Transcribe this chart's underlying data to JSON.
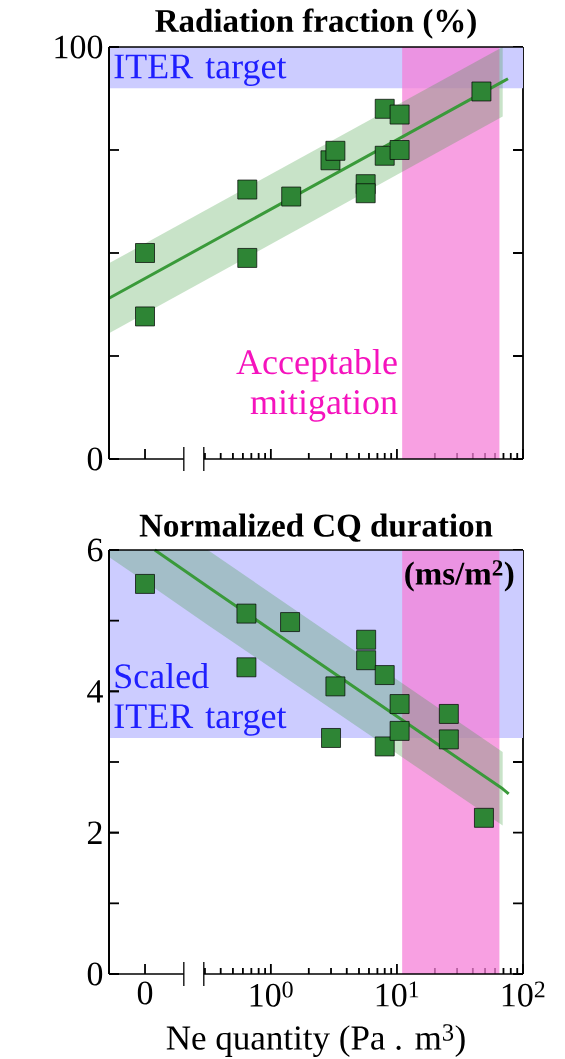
{
  "chart_data": [
    {
      "type": "scatter",
      "categories": [
        "0"
      ],
      "ylim": [
        0,
        100
      ],
      "yticks": [
        0,
        100
      ],
      "tick_labels": "y",
      "series": [
        {
          "color": "#2e8535",
          "marker": "square",
          "values": [
            50.0
          ]
        },
        {
          "color": "#2e8535",
          "marker": "square",
          "values": [
            34.6
          ]
        }
      ]
    },
    {
      "type": "scatter",
      "title": "Radiation fraction (%)",
      "xlim": [
        0.052,
        100
      ],
      "ylim": [
        0,
        100
      ],
      "log": "x",
      "xticks": [
        {
          "value": 1,
          "label": null
        },
        {
          "value": 10,
          "label": null
        },
        {
          "value": 100,
          "label": null
        }
      ],
      "yticks": [
        0,
        {
          "value": 25,
          "label": null
        },
        {
          "value": 50,
          "label": null
        },
        {
          "value": 75,
          "label": null
        },
        100
      ],
      "tick_labels": false,
      "series": [
        {
          "type": "line",
          "color": "#3a9a3a",
          "x": [
            0.052,
            69,
            76
          ],
          "values": [
            39.0,
            91.6,
            92.3
          ],
          "lower": [
            30.5,
            83.1,
            null
          ],
          "upper": [
            47.5,
            100,
            null
          ]
        },
        {
          "color": "#2e8535",
          "marker": "square",
          "x": [
            0.65,
            0.65,
            1.45,
            2.97,
            3.25,
            5.65,
            5.65,
            8.0,
            8.0,
            10.5,
            10.5,
            46.8
          ],
          "values": [
            65.4,
            48.8,
            63.7,
            72.5,
            74.8,
            66.7,
            64.5,
            85.0,
            73.6,
            83.6,
            75.0,
            89.2
          ]
        }
      ],
      "bands": [
        {
          "axis": "y",
          "from": 90,
          "to": 100,
          "label": "ITER target",
          "color": "#ccccff"
        },
        {
          "axis": "x",
          "from": 11,
          "to": 65,
          "label": "Acceptable mitigation",
          "color": "#f580d8"
        }
      ]
    },
    {
      "type": "scatter",
      "categories": [
        "0"
      ],
      "ylim": [
        0,
        6
      ],
      "yticks": [
        0,
        2,
        4,
        6
      ],
      "series": [
        {
          "color": "#2e8535",
          "marker": "square",
          "values": [
            5.52
          ]
        }
      ]
    },
    {
      "type": "scatter",
      "title": "Normalized CQ duration",
      "xlabel": "Ne quantity (Pa . m$^{3}$)",
      "annotations": [
        "(ms/m$^{2}$)"
      ],
      "xlim": [
        0.052,
        100
      ],
      "ylim": [
        0,
        6
      ],
      "log": "x",
      "xticks": [
        {
          "value": 1,
          "label": "10$^{0}$"
        },
        {
          "value": 10,
          "label": "10$^{1}$"
        },
        {
          "value": 100,
          "label": "10$^{2}$"
        }
      ],
      "yticks": [
        0,
        {
          "value": 1,
          "label": null
        },
        2,
        {
          "value": 3,
          "label": null
        },
        4,
        {
          "value": 5,
          "label": null
        },
        6
      ],
      "tick_labels": "x",
      "series": [
        {
          "type": "line",
          "color": "#3a9a3a",
          "x": [
            0.052,
            0.12,
            0.316,
            69,
            77
          ],
          "values": [
            null,
            6.0,
            5.48,
            2.62,
            2.55
          ],
          "lower": [
            5.9,
            5.46,
            4.94,
            2.1,
            null
          ],
          "upper": [
            6,
            6,
            6,
            3.14,
            null
          ]
        },
        {
          "color": "#2e8535",
          "marker": "square",
          "x": [
            0.64,
            0.64,
            1.42,
            3.25,
            3.0,
            5.7,
            5.7,
            8.0,
            8.0,
            10.5,
            10.5,
            25.8,
            25.8,
            49
          ],
          "values": [
            5.1,
            4.34,
            4.98,
            4.07,
            3.34,
            4.73,
            4.44,
            4.23,
            3.22,
            3.82,
            3.44,
            3.68,
            3.32,
            2.21
          ]
        }
      ],
      "bands": [
        {
          "axis": "y",
          "from": 3.34,
          "to": 6,
          "label": "Scaled ITER target",
          "color": "#ccccff"
        },
        {
          "axis": "x",
          "from": 11,
          "to": 65,
          "color": "#f580d8"
        }
      ]
    }
  ]
}
